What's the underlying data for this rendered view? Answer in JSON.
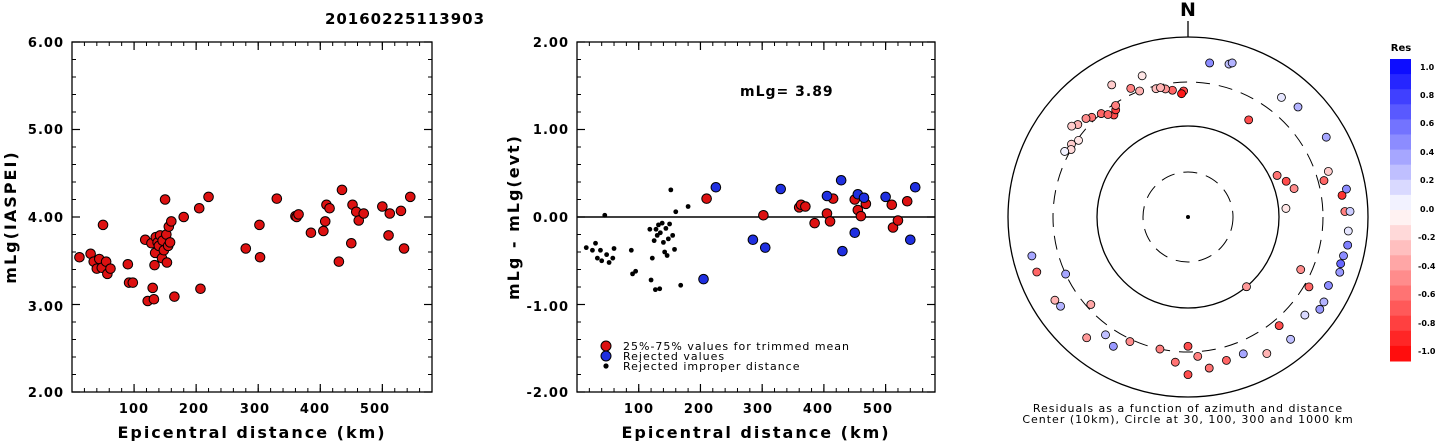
{
  "figure": {
    "title": "20160225113903",
    "north_label": "N",
    "polar_caption_1": "Residuals as a function of azimuth and distance",
    "polar_caption_2": "Center (10km), Circle at 30, 100, 300 and 1000 km",
    "colorbar_title": "Res",
    "colorbar_ticks": [
      "1.0",
      "0.8",
      "0.6",
      "0.4",
      "0.2",
      "0.0",
      "-0.2",
      "-0.4",
      "-0.6",
      "-0.8",
      "-1.0"
    ]
  },
  "chart_data": [
    {
      "type": "scatter",
      "xlabel": "Epicentral distance (km)",
      "ylabel": "mLg(IASPEI)",
      "xlim": [
        0,
        580
      ],
      "ylim": [
        2.0,
        6.0
      ],
      "xticks": [
        100,
        200,
        300,
        400,
        500
      ],
      "xtick_labels": [
        "100",
        "200",
        "300",
        "400",
        "500"
      ],
      "yticks": [
        2.0,
        3.0,
        4.0,
        5.0,
        6.0
      ],
      "ytick_labels": [
        "2.00",
        "3.00",
        "4.00",
        "5.00",
        "6.00"
      ],
      "points": [
        [
          12,
          3.54
        ],
        [
          30,
          3.58
        ],
        [
          35,
          3.49
        ],
        [
          40,
          3.41
        ],
        [
          44,
          3.52
        ],
        [
          48,
          3.42
        ],
        [
          50,
          3.91
        ],
        [
          55,
          3.49
        ],
        [
          57,
          3.35
        ],
        [
          62,
          3.41
        ],
        [
          90,
          3.46
        ],
        [
          92,
          3.25
        ],
        [
          98,
          3.25
        ],
        [
          118,
          3.74
        ],
        [
          122,
          3.04
        ],
        [
          128,
          3.7
        ],
        [
          130,
          3.19
        ],
        [
          132,
          3.06
        ],
        [
          133,
          3.45
        ],
        [
          134,
          3.59
        ],
        [
          135,
          3.77
        ],
        [
          138,
          3.71
        ],
        [
          140,
          3.67
        ],
        [
          142,
          3.79
        ],
        [
          145,
          3.53
        ],
        [
          146,
          3.73
        ],
        [
          148,
          3.62
        ],
        [
          150,
          4.2
        ],
        [
          152,
          3.8
        ],
        [
          153,
          3.48
        ],
        [
          155,
          3.67
        ],
        [
          156,
          3.89
        ],
        [
          158,
          3.71
        ],
        [
          160,
          3.95
        ],
        [
          165,
          3.09
        ],
        [
          180,
          4.0
        ],
        [
          205,
          4.1
        ],
        [
          207,
          3.18
        ],
        [
          220,
          4.23
        ],
        [
          280,
          3.64
        ],
        [
          302,
          3.91
        ],
        [
          303,
          3.54
        ],
        [
          330,
          4.21
        ],
        [
          360,
          4.01
        ],
        [
          362,
          4.0
        ],
        [
          365,
          4.03
        ],
        [
          385,
          3.82
        ],
        [
          405,
          3.84
        ],
        [
          408,
          3.95
        ],
        [
          410,
          4.14
        ],
        [
          415,
          4.1
        ],
        [
          430,
          3.49
        ],
        [
          435,
          4.31
        ],
        [
          450,
          3.7
        ],
        [
          452,
          4.14
        ],
        [
          458,
          4.06
        ],
        [
          462,
          3.96
        ],
        [
          470,
          4.04
        ],
        [
          500,
          4.12
        ],
        [
          510,
          3.79
        ],
        [
          512,
          4.04
        ],
        [
          530,
          4.07
        ],
        [
          535,
          3.64
        ],
        [
          545,
          4.23
        ]
      ]
    },
    {
      "type": "scatter",
      "xlabel": "Epicentral distance (km)",
      "ylabel": "mLg - mLg(evt)",
      "annotation": "mLg= 3.89",
      "xlim": [
        0,
        580
      ],
      "ylim": [
        -2.0,
        2.0
      ],
      "xticks": [
        100,
        200,
        300,
        400,
        500
      ],
      "xtick_labels": [
        "100",
        "200",
        "300",
        "400",
        "500"
      ],
      "yticks": [
        -2.0,
        -1.0,
        0.0,
        1.0,
        2.0
      ],
      "ytick_labels": [
        "-2.00",
        "-1.00",
        "0.00",
        "1.00",
        "2.00"
      ],
      "reference_line": 0.0,
      "series": [
        {
          "name": "25%-75% values for trimmed mean",
          "color": "#dd1111",
          "points": [
            [
              210,
              0.21
            ],
            [
              302,
              0.02
            ],
            [
              360,
              0.11
            ],
            [
              363,
              0.14
            ],
            [
              370,
              0.12
            ],
            [
              385,
              -0.07
            ],
            [
              405,
              0.04
            ],
            [
              410,
              -0.05
            ],
            [
              415,
              0.21
            ],
            [
              450,
              0.2
            ],
            [
              455,
              0.08
            ],
            [
              460,
              0.01
            ],
            [
              468,
              0.15
            ],
            [
              510,
              0.14
            ],
            [
              512,
              -0.12
            ],
            [
              520,
              -0.04
            ],
            [
              535,
              0.18
            ]
          ]
        },
        {
          "name": "Rejected values",
          "color": "#1f2fe0",
          "points": [
            [
              205,
              -0.71
            ],
            [
              225,
              0.34
            ],
            [
              285,
              -0.26
            ],
            [
              305,
              -0.35
            ],
            [
              330,
              0.32
            ],
            [
              405,
              0.24
            ],
            [
              428,
              0.42
            ],
            [
              430,
              -0.39
            ],
            [
              450,
              -0.18
            ],
            [
              455,
              0.26
            ],
            [
              465,
              0.22
            ],
            [
              500,
              0.23
            ],
            [
              540,
              -0.26
            ],
            [
              548,
              0.34
            ]
          ]
        },
        {
          "name": "Rejected improper distance",
          "color": "#000000",
          "points": [
            [
              15,
              -0.35
            ],
            [
              25,
              -0.38
            ],
            [
              30,
              -0.3
            ],
            [
              33,
              -0.47
            ],
            [
              38,
              -0.38
            ],
            [
              40,
              -0.5
            ],
            [
              45,
              0.02
            ],
            [
              48,
              -0.43
            ],
            [
              52,
              -0.52
            ],
            [
              58,
              -0.47
            ],
            [
              60,
              -0.36
            ],
            [
              88,
              -0.38
            ],
            [
              90,
              -0.65
            ],
            [
              95,
              -0.62
            ],
            [
              118,
              -0.14
            ],
            [
              120,
              -0.72
            ],
            [
              122,
              -0.47
            ],
            [
              125,
              -0.27
            ],
            [
              127,
              -0.83
            ],
            [
              128,
              -0.14
            ],
            [
              130,
              -0.21
            ],
            [
              132,
              -0.09
            ],
            [
              134,
              -0.82
            ],
            [
              135,
              -0.18
            ],
            [
              138,
              -0.07
            ],
            [
              140,
              -0.29
            ],
            [
              142,
              -0.4
            ],
            [
              144,
              -0.13
            ],
            [
              146,
              -0.44
            ],
            [
              148,
              -0.25
            ],
            [
              150,
              -0.08
            ],
            [
              152,
              0.31
            ],
            [
              155,
              -0.21
            ],
            [
              158,
              -0.37
            ],
            [
              160,
              0.06
            ],
            [
              168,
              -0.78
            ],
            [
              180,
              0.12
            ]
          ]
        }
      ]
    },
    {
      "type": "polar_scatter",
      "rings_km": [
        30,
        100,
        300,
        1000
      ],
      "center_km": 10,
      "color_scale": {
        "min": -1.0,
        "max": 1.0,
        "negative_color": "#ff0000",
        "positive_color": "#0000ff"
      },
      "points": [
        {
          "az": 8,
          "dist": 520,
          "res": 0.45
        },
        {
          "az": 15,
          "dist": 560,
          "res": 0.25
        },
        {
          "az": 16,
          "dist": 590,
          "res": 0.3
        },
        {
          "az": -18,
          "dist": 430,
          "res": -0.1
        },
        {
          "az": -30,
          "dist": 480,
          "res": -0.2
        },
        {
          "az": -24,
          "dist": 350,
          "res": -0.5
        },
        {
          "az": -21,
          "dist": 300,
          "res": -0.3
        },
        {
          "az": -14,
          "dist": 280,
          "res": -0.25
        },
        {
          "az": -7,
          "dist": 250,
          "res": -0.6
        },
        {
          "az": -2,
          "dist": 240,
          "res": -0.7
        },
        {
          "az": -3,
          "dist": 225,
          "res": -0.9
        },
        {
          "az": -10,
          "dist": 265,
          "res": -0.4
        },
        {
          "az": -12,
          "dist": 280,
          "res": -0.3
        },
        {
          "az": -40,
          "dist": 300,
          "res": -0.6
        },
        {
          "az": -44,
          "dist": 330,
          "res": -0.55
        },
        {
          "az": -46,
          "dist": 360,
          "res": -0.45
        },
        {
          "az": -50,
          "dist": 380,
          "res": -0.3
        },
        {
          "az": -52,
          "dist": 420,
          "res": -0.2
        },
        {
          "az": -36,
          "dist": 240,
          "res": -0.7
        },
        {
          "az": -34,
          "dist": 260,
          "res": -0.75
        },
        {
          "az": -38,
          "dist": 265,
          "res": -0.6
        },
        {
          "az": -33,
          "dist": 285,
          "res": -0.5
        },
        {
          "az": -55,
          "dist": 290,
          "res": -0.1
        },
        {
          "az": -58,
          "dist": 320,
          "res": -0.2
        },
        {
          "az": -60,
          "dist": 300,
          "res": -0.15
        },
        {
          "az": -62,
          "dist": 340,
          "res": 0.05
        },
        {
          "az": 32,
          "dist": 180,
          "res": -0.7
        },
        {
          "az": 38,
          "dist": 470,
          "res": 0.1
        },
        {
          "az": 45,
          "dist": 520,
          "res": 0.3
        },
        {
          "az": 60,
          "dist": 580,
          "res": 0.35
        },
        {
          "az": 72,
          "dist": 420,
          "res": -0.2
        },
        {
          "az": 75,
          "dist": 350,
          "res": -0.6
        },
        {
          "az": 82,
          "dist": 520,
          "res": -0.8
        },
        {
          "az": 88,
          "dist": 540,
          "res": -0.5
        },
        {
          "az": 88,
          "dist": 620,
          "res": 0.2
        },
        {
          "az": 80,
          "dist": 600,
          "res": 0.45
        },
        {
          "az": 65,
          "dist": 120,
          "res": -0.55
        },
        {
          "az": 70,
          "dist": 140,
          "res": -0.7
        },
        {
          "az": 75,
          "dist": 160,
          "res": -0.45
        },
        {
          "az": 85,
          "dist": 120,
          "res": -0.1
        },
        {
          "az": 95,
          "dist": 600,
          "res": 0.1
        },
        {
          "az": 100,
          "dist": 620,
          "res": 0.5
        },
        {
          "az": 104,
          "dist": 590,
          "res": 0.45
        },
        {
          "az": 107,
          "dist": 580,
          "res": 0.6
        },
        {
          "az": 110,
          "dist": 610,
          "res": 0.4
        },
        {
          "az": 116,
          "dist": 530,
          "res": 0.45
        },
        {
          "az": 122,
          "dist": 590,
          "res": 0.3
        },
        {
          "az": 125,
          "dist": 600,
          "res": 0.4
        },
        {
          "az": 130,
          "dist": 480,
          "res": 0.15
        },
        {
          "az": 140,
          "dist": 360,
          "res": -0.7
        },
        {
          "az": 140,
          "dist": 580,
          "res": 0.25
        },
        {
          "az": 150,
          "dist": 550,
          "res": -0.3
        },
        {
          "az": 158,
          "dist": 420,
          "res": 0.35
        },
        {
          "az": 165,
          "dist": 430,
          "res": -0.6
        },
        {
          "az": 172,
          "dist": 480,
          "res": -0.55
        },
        {
          "az": 176,
          "dist": 340,
          "res": -0.5
        },
        {
          "az": 180,
          "dist": 550,
          "res": -0.7
        },
        {
          "az": 185,
          "dist": 400,
          "res": -0.55
        },
        {
          "az": 192,
          "dist": 300,
          "res": -0.5
        },
        {
          "az": 205,
          "dist": 320,
          "res": -0.45
        },
        {
          "az": 210,
          "dist": 440,
          "res": 0.4
        },
        {
          "az": 215,
          "dist": 380,
          "res": 0.25
        },
        {
          "az": 220,
          "dist": 550,
          "res": -0.4
        },
        {
          "az": 228,
          "dist": 270,
          "res": -0.35
        },
        {
          "az": 235,
          "dist": 520,
          "res": 0.3
        },
        {
          "az": 238,
          "dist": 540,
          "res": -0.3
        },
        {
          "az": 245,
          "dist": 300,
          "res": 0.35
        },
        {
          "az": 250,
          "dist": 600,
          "res": -0.6
        },
        {
          "az": 256,
          "dist": 600,
          "res": 0.35
        },
        {
          "az": 180,
          "dist": 260,
          "res": -0.7
        },
        {
          "az": 140,
          "dist": 100,
          "res": -0.4
        },
        {
          "az": 115,
          "dist": 230,
          "res": -0.45
        },
        {
          "az": 120,
          "dist": 340,
          "res": -0.6
        }
      ]
    }
  ]
}
